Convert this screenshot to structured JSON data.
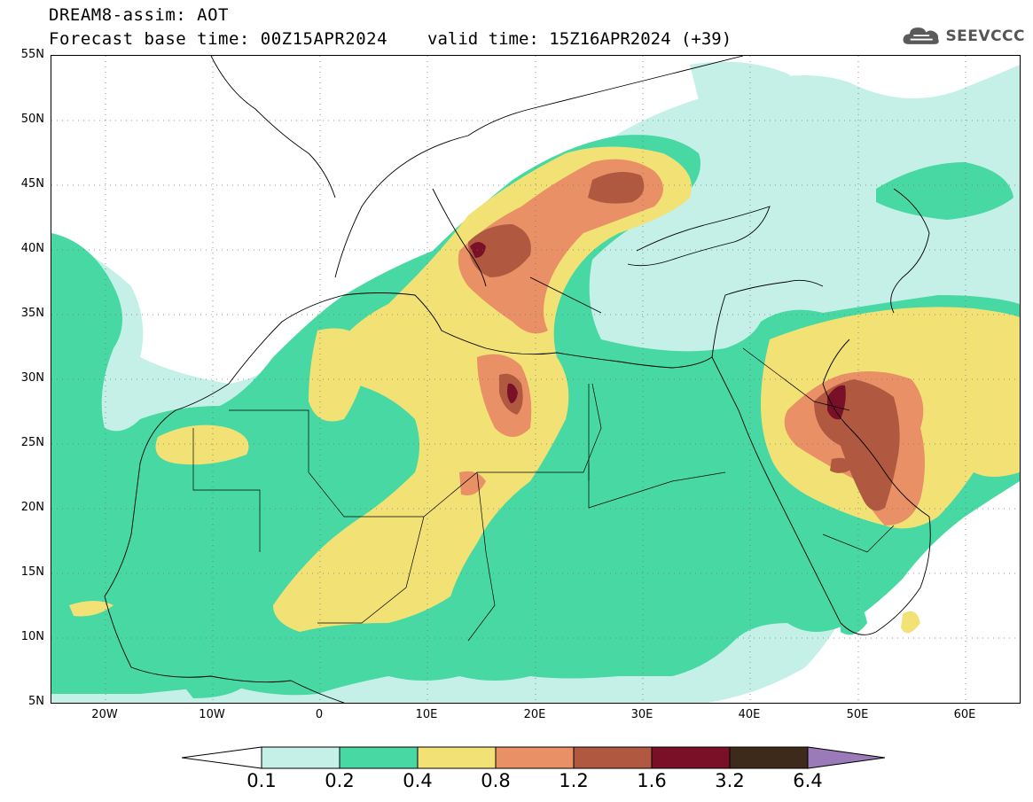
{
  "header": {
    "title": "DREAM8-assim: AOT",
    "base_time": "Forecast base time: 00Z15APR2024",
    "valid_time": "valid time: 15Z16APR2024 (+39)"
  },
  "logo": {
    "text": "SEEVCCC",
    "icon": "cloud-icon"
  },
  "map": {
    "lat_labels": [
      "55N",
      "50N",
      "45N",
      "40N",
      "35N",
      "30N",
      "25N",
      "20N",
      "15N",
      "10N",
      "5N"
    ],
    "lon_labels": [
      "20W",
      "10W",
      "0",
      "10E",
      "20E",
      "30E",
      "40E",
      "50E",
      "60E"
    ],
    "lon_range": [
      -25,
      65
    ],
    "lat_range": [
      5,
      55
    ],
    "gridlines": "dotted"
  },
  "legend": {
    "values": [
      "0.1",
      "0.2",
      "0.4",
      "0.8",
      "1.2",
      "1.6",
      "3.2",
      "6.4"
    ],
    "colors": [
      "#ffffff",
      "#c4f0e8",
      "#47d8a4",
      "#f2e276",
      "#e99066",
      "#b05840",
      "#7a0f28",
      "#3e2a1a",
      "#9a7ab8"
    ]
  },
  "colors": {
    "light_cyan": "#c4f0e8",
    "green": "#47d8a4",
    "yellow": "#f2e276",
    "orange": "#e99066",
    "brown": "#b05840",
    "dark_red": "#7a0f28"
  }
}
